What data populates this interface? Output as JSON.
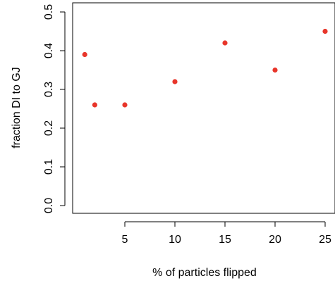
{
  "chart_data": {
    "type": "scatter",
    "title": "",
    "xlabel": "% of particles flipped",
    "ylabel": "fraction DI to GJ",
    "xlim": [
      0.5,
      25.5
    ],
    "ylim": [
      -0.02,
      0.5
    ],
    "xticks": [
      5,
      10,
      15,
      20,
      25
    ],
    "yticks": [
      0.0,
      0.1,
      0.2,
      0.3,
      0.4,
      0.5
    ],
    "x_tick_labels": [
      "5",
      "10",
      "15",
      "20",
      "25"
    ],
    "y_tick_labels": [
      "0.0",
      "0.1",
      "0.2",
      "0.3",
      "0.4",
      "0.5"
    ],
    "grid": false,
    "marker_color": "#e8362b",
    "points": [
      {
        "x": 1,
        "y": 0.39
      },
      {
        "x": 2,
        "y": 0.26
      },
      {
        "x": 5,
        "y": 0.26
      },
      {
        "x": 10,
        "y": 0.32
      },
      {
        "x": 15,
        "y": 0.42
      },
      {
        "x": 20,
        "y": 0.35
      },
      {
        "x": 25,
        "y": 0.45
      }
    ]
  }
}
